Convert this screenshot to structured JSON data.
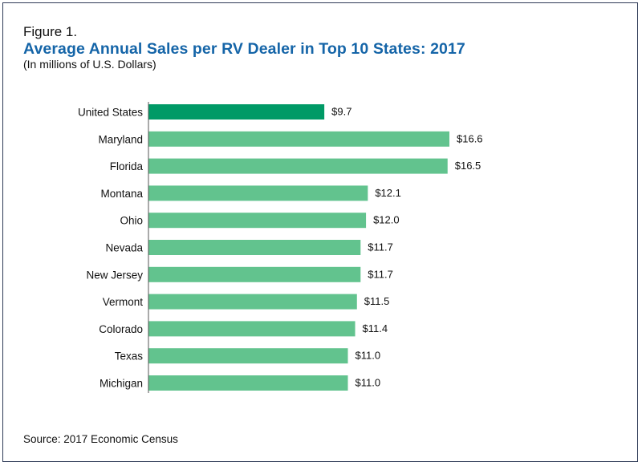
{
  "figure_label": "Figure 1.",
  "title": "Average Annual Sales per RV Dealer in Top 10 States: 2017",
  "subtitle": "(In millions of U.S. Dollars)",
  "source": "Source: 2017 Economic Census",
  "colors": {
    "highlight_bar": "#009a66",
    "bar": "#62c38e",
    "title": "#1565a8",
    "frame": "#2e3a56"
  },
  "chart_data": {
    "type": "bar",
    "orientation": "horizontal",
    "title": "Average Annual Sales per RV Dealer in Top 10 States: 2017",
    "subtitle": "(In millions of U.S. Dollars)",
    "categories": [
      "United States",
      "Maryland",
      "Florida",
      "Montana",
      "Ohio",
      "Nevada",
      "New Jersey",
      "Vermont",
      "Colorado",
      "Texas",
      "Michigan"
    ],
    "values": [
      9.7,
      16.6,
      16.5,
      12.1,
      12.0,
      11.7,
      11.7,
      11.5,
      11.4,
      11.0,
      11.0
    ],
    "value_labels": [
      "$9.7",
      "$16.6",
      "$16.5",
      "$12.1",
      "$12.0",
      "$11.7",
      "$11.7",
      "$11.5",
      "$11.4",
      "$11.0",
      "$11.0"
    ],
    "highlight": [
      "United States"
    ],
    "xlim": [
      0,
      16.6
    ],
    "grid": false,
    "xlabel": "",
    "ylabel": ""
  }
}
